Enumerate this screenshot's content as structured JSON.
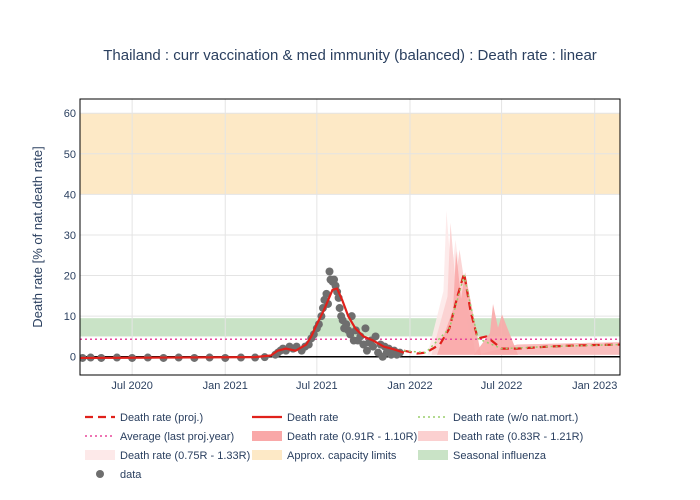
{
  "chart_data": {
    "type": "line",
    "title": "Thailand : curr vaccination & med immunity (balanced) : Death rate : linear",
    "ylabel": "Death rate [% of nat.death rate]",
    "xlabel": "",
    "ylim": [
      -4.5,
      63.5
    ],
    "xlim": [
      "2020-03-20",
      "2023-02-20"
    ],
    "y_ticks": [
      0,
      10,
      20,
      30,
      40,
      50,
      60
    ],
    "x_ticks": [
      {
        "date": "2020-07-01",
        "label": "Jul 2020"
      },
      {
        "date": "2021-01-01",
        "label": "Jan 2021"
      },
      {
        "date": "2021-07-01",
        "label": "Jul 2021"
      },
      {
        "date": "2022-01-01",
        "label": "Jan 2022"
      },
      {
        "date": "2022-07-01",
        "label": "Jul 2022"
      },
      {
        "date": "2023-01-01",
        "label": "Jan 2023"
      }
    ],
    "grid": true,
    "legend_position": "bottom",
    "bands": [
      {
        "name": "Approx. capacity limits",
        "y0": 40,
        "y1": 60,
        "color": "#fde9c6"
      },
      {
        "name": "Seasonal influenza",
        "y0": 5,
        "y1": 9.5,
        "color": "#c9e3c6"
      }
    ],
    "average_line": {
      "name": "Average (last proj.year)",
      "y": 4.3,
      "color": "#e8479a"
    },
    "series": [
      {
        "name": "Death rate (proj.)",
        "style": "dash",
        "color": "#e0211b",
        "x": [
          "2021-12-20",
          "2022-01-15",
          "2022-02-01",
          "2022-03-01",
          "2022-03-20",
          "2022-04-05",
          "2022-04-18",
          "2022-05-01",
          "2022-05-15",
          "2022-06-01",
          "2022-07-01",
          "2022-08-01",
          "2022-10-01",
          "2022-12-01",
          "2023-02-20"
        ],
        "y": [
          1.5,
          0.8,
          1.0,
          3.0,
          7.0,
          15.0,
          20.5,
          11.0,
          4.5,
          5.0,
          2.0,
          2.0,
          2.5,
          2.8,
          3.0
        ]
      },
      {
        "name": "Death rate",
        "style": "solid",
        "color": "#e0211b",
        "x": [
          "2020-03-20",
          "2020-09-01",
          "2021-03-01",
          "2021-04-01",
          "2021-04-15",
          "2021-05-01",
          "2021-05-20",
          "2021-06-10",
          "2021-06-20",
          "2021-07-01",
          "2021-07-15",
          "2021-08-01",
          "2021-08-10",
          "2021-08-20",
          "2021-09-01",
          "2021-09-15",
          "2021-10-01",
          "2021-10-20",
          "2021-11-10",
          "2021-12-01",
          "2021-12-20"
        ],
        "y": [
          -0.3,
          -0.2,
          -0.1,
          0.3,
          1.5,
          2.0,
          1.5,
          3.0,
          5.0,
          8.0,
          11.5,
          16.5,
          16.8,
          14.0,
          10.0,
          7.0,
          5.0,
          4.0,
          2.5,
          1.8,
          1.0
        ]
      },
      {
        "name": "Death rate (w/o nat.mort.)",
        "style": "dot",
        "color": "#9acd6c",
        "x": [
          "2021-12-20",
          "2022-02-01",
          "2022-03-20",
          "2022-04-18",
          "2022-05-15",
          "2022-07-01",
          "2022-10-01",
          "2023-02-20"
        ],
        "y": [
          1.5,
          1.0,
          7.0,
          20.0,
          4.5,
          2.0,
          2.5,
          3.0
        ]
      }
    ],
    "ranges": [
      {
        "name": "Death rate (0.91R - 1.10R)",
        "color": "#f9a8a8",
        "peaks": [
          {
            "date": "2022-04-08",
            "height": 26
          },
          {
            "date": "2022-06-20",
            "height": 13
          }
        ]
      },
      {
        "name": "Death rate (0.83R - 1.21R)",
        "color": "#fbd0d0",
        "peaks": [
          {
            "date": "2022-03-28",
            "height": 33
          }
        ]
      },
      {
        "name": "Death rate (0.75R - 1.33R)",
        "color": "#fde9e9",
        "peaks": [
          {
            "date": "2022-03-20",
            "height": 36
          }
        ]
      }
    ],
    "scatter": {
      "name": "data",
      "color": "#6e6e6e",
      "points": [
        [
          "2020-03-25",
          -0.3
        ],
        [
          "2020-04-10",
          -0.2
        ],
        [
          "2020-05-01",
          -0.3
        ],
        [
          "2020-06-01",
          -0.2
        ],
        [
          "2020-07-01",
          -0.3
        ],
        [
          "2020-08-01",
          -0.2
        ],
        [
          "2020-09-01",
          -0.3
        ],
        [
          "2020-10-01",
          -0.2
        ],
        [
          "2020-11-01",
          -0.3
        ],
        [
          "2020-12-01",
          -0.2
        ],
        [
          "2021-01-01",
          -0.3
        ],
        [
          "2021-02-01",
          -0.2
        ],
        [
          "2021-03-01",
          -0.2
        ],
        [
          "2021-03-20",
          -0.1
        ],
        [
          "2021-04-10",
          0.5
        ],
        [
          "2021-04-15",
          1.0
        ],
        [
          "2021-04-20",
          1.5
        ],
        [
          "2021-04-25",
          2.0
        ],
        [
          "2021-05-01",
          1.5
        ],
        [
          "2021-05-08",
          2.5
        ],
        [
          "2021-05-15",
          2.0
        ],
        [
          "2021-05-22",
          2.5
        ],
        [
          "2021-06-01",
          1.5
        ],
        [
          "2021-06-08",
          2.5
        ],
        [
          "2021-06-15",
          3.0
        ],
        [
          "2021-06-20",
          4.5
        ],
        [
          "2021-06-25",
          5.5
        ],
        [
          "2021-07-01",
          7.0
        ],
        [
          "2021-07-05",
          8.0
        ],
        [
          "2021-07-10",
          10.0
        ],
        [
          "2021-07-13",
          12.0
        ],
        [
          "2021-07-16",
          14.0
        ],
        [
          "2021-07-20",
          15.5
        ],
        [
          "2021-07-23",
          13.0
        ],
        [
          "2021-07-26",
          21.0
        ],
        [
          "2021-07-28",
          19.0
        ],
        [
          "2021-08-01",
          18.5
        ],
        [
          "2021-08-04",
          19.0
        ],
        [
          "2021-08-07",
          17.5
        ],
        [
          "2021-08-10",
          16.0
        ],
        [
          "2021-08-13",
          14.5
        ],
        [
          "2021-08-15",
          12.0
        ],
        [
          "2021-08-18",
          10.0
        ],
        [
          "2021-08-21",
          9.0
        ],
        [
          "2021-08-24",
          7.0
        ],
        [
          "2021-08-28",
          8.0
        ],
        [
          "2021-09-01",
          6.5
        ],
        [
          "2021-09-05",
          5.5
        ],
        [
          "2021-09-08",
          10.0
        ],
        [
          "2021-09-12",
          4.0
        ],
        [
          "2021-09-16",
          6.5
        ],
        [
          "2021-09-20",
          4.0
        ],
        [
          "2021-09-25",
          5.0
        ],
        [
          "2021-10-01",
          3.0
        ],
        [
          "2021-10-05",
          7.0
        ],
        [
          "2021-10-08",
          1.5
        ],
        [
          "2021-10-12",
          3.5
        ],
        [
          "2021-10-16",
          4.0
        ],
        [
          "2021-10-20",
          2.5
        ],
        [
          "2021-10-25",
          5.0
        ],
        [
          "2021-10-30",
          1.0
        ],
        [
          "2021-11-04",
          3.0
        ],
        [
          "2021-11-08",
          0.0
        ],
        [
          "2021-11-12",
          2.5
        ],
        [
          "2021-11-16",
          1.0
        ],
        [
          "2021-11-20",
          2.0
        ],
        [
          "2021-11-25",
          0.5
        ],
        [
          "2021-12-01",
          1.5
        ],
        [
          "2021-12-06",
          0.5
        ],
        [
          "2021-12-12",
          1.0
        ]
      ]
    },
    "legend": [
      {
        "name": "Death rate (proj.)",
        "kind": "dash",
        "color": "#e0211b"
      },
      {
        "name": "Death rate",
        "kind": "solid",
        "color": "#e0211b"
      },
      {
        "name": "Death rate (w/o nat.mort.)",
        "kind": "dot",
        "color": "#9acd6c"
      },
      {
        "name": "Average (last proj.year)",
        "kind": "dot",
        "color": "#e8479a"
      },
      {
        "name": "Death rate (0.91R - 1.10R)",
        "kind": "fill",
        "color": "#f9a8a8"
      },
      {
        "name": "Death rate (0.83R - 1.21R)",
        "kind": "fill",
        "color": "#fbd0d0"
      },
      {
        "name": "Death rate (0.75R - 1.33R)",
        "kind": "fill",
        "color": "#fde9e9"
      },
      {
        "name": "Approx. capacity limits",
        "kind": "fill",
        "color": "#fde9c6"
      },
      {
        "name": "Seasonal influenza",
        "kind": "fill",
        "color": "#c9e3c6"
      },
      {
        "name": "data",
        "kind": "marker",
        "color": "#6e6e6e"
      }
    ]
  }
}
